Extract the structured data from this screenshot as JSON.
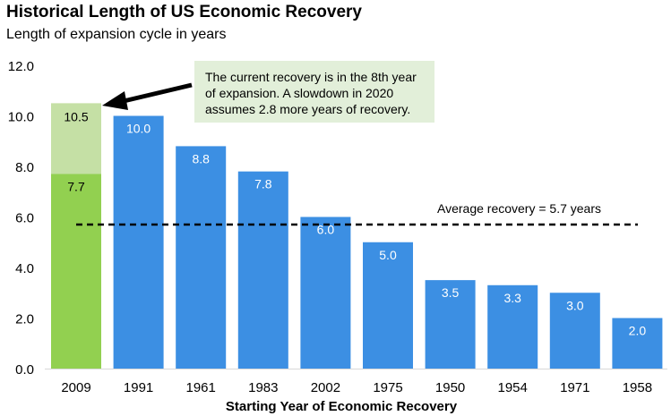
{
  "chart_data": {
    "type": "bar",
    "title": "Historical Length of US Economic Recovery",
    "subtitle": "Length of expansion cycle in years",
    "xlabel": "Starting Year of Economic Recovery",
    "ylabel": "",
    "ylim": [
      0,
      12
    ],
    "yticks": [
      "0.0",
      "2.0",
      "4.0",
      "6.0",
      "8.0",
      "10.0",
      "12.0"
    ],
    "categories": [
      "2009",
      "1991",
      "1961",
      "1983",
      "2002",
      "1975",
      "1950",
      "1954",
      "1971",
      "1958"
    ],
    "values": [
      7.7,
      10.0,
      8.8,
      7.8,
      6.0,
      5.0,
      3.5,
      3.3,
      3.0,
      2.0
    ],
    "value_labels": [
      "7.7",
      "10.0",
      "8.8",
      "7.8",
      "6.0",
      "5.0",
      "3.5",
      "3.3",
      "3.0",
      "2.0"
    ],
    "projected_total": 10.5,
    "projected_label": "10.5",
    "average": 5.7,
    "average_label": "Average recovery = 5.7 years",
    "annotation": [
      "The current recovery is in the 8th year",
      "of expansion. A slowdown in 2020",
      "assumes 2.8 more years of recovery."
    ],
    "grid": false,
    "legend": "none",
    "colors": {
      "bar": "#3c8fe3",
      "current": "#92d050",
      "projected": "#c5e0a5",
      "average_line": "#000000",
      "callout_bg": "#e2efd9"
    }
  }
}
